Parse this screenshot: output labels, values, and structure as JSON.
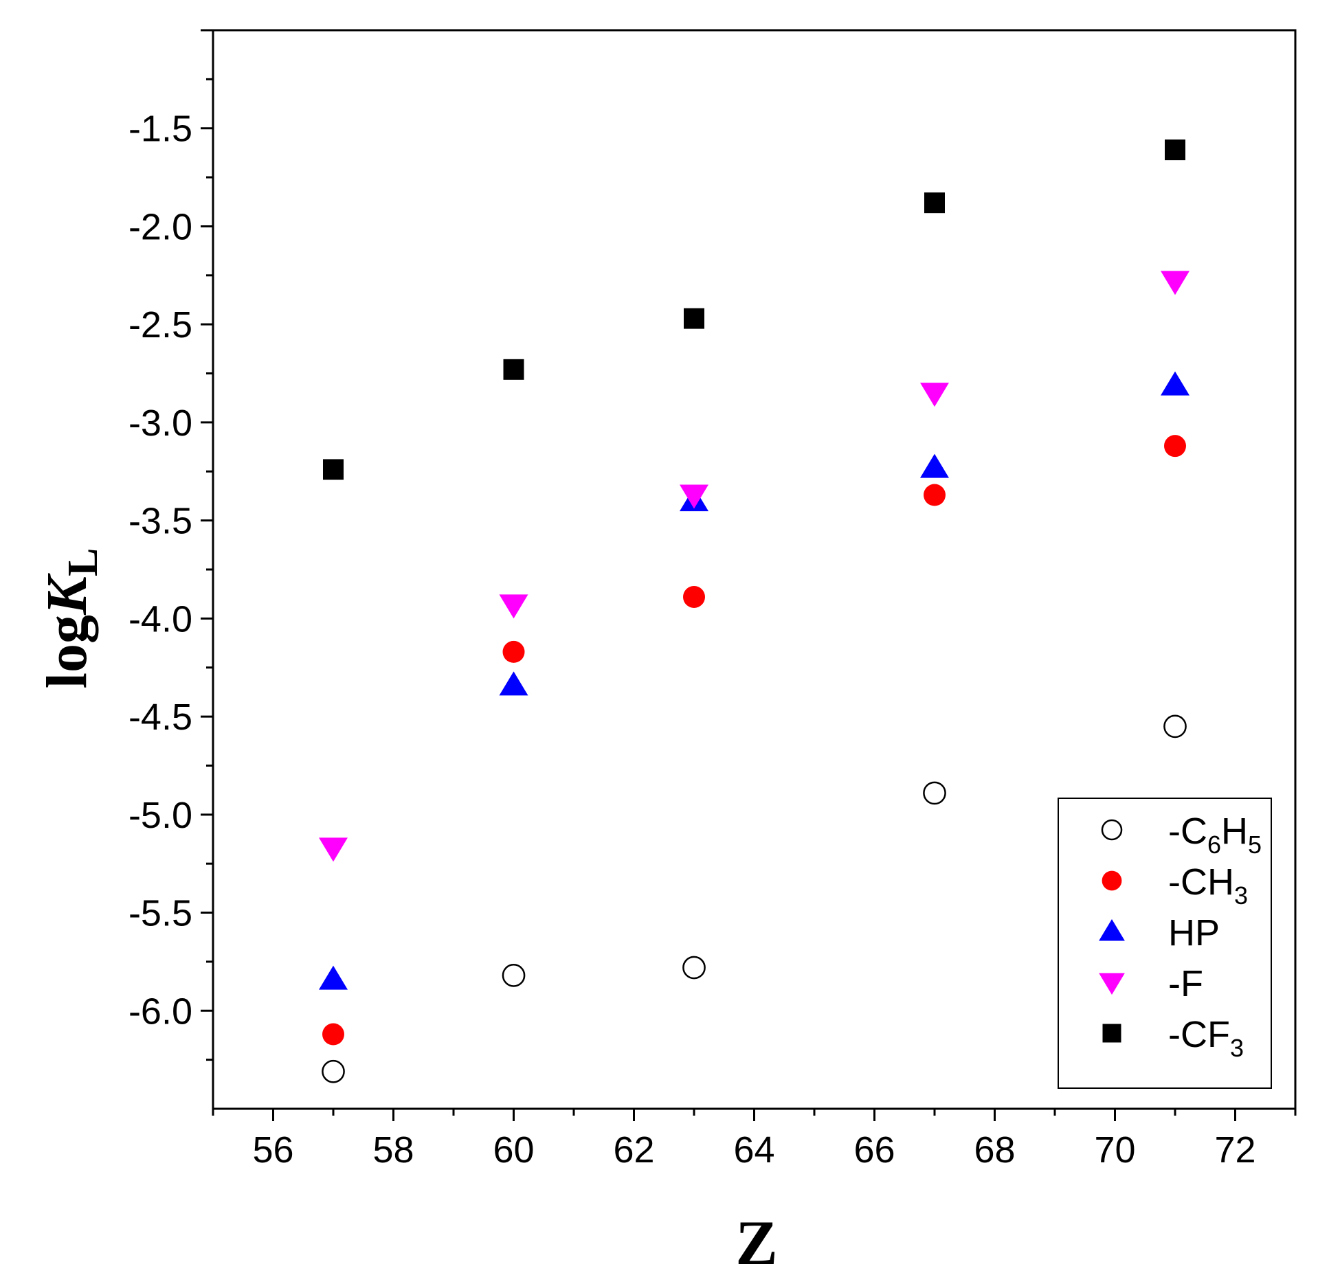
{
  "chart_data": {
    "type": "scatter",
    "title": "",
    "xlabel": "Z",
    "ylabel": {
      "prefix": "log",
      "italic": "K",
      "subscript": "L"
    },
    "xlim": [
      55,
      73
    ],
    "ylim": [
      -6.5,
      -1.0
    ],
    "x_ticks": [
      "56",
      "58",
      "60",
      "62",
      "64",
      "66",
      "68",
      "70",
      "72"
    ],
    "y_ticks": [
      "-1.5",
      "-2.0",
      "-2.5",
      "-3.0",
      "-3.5",
      "-4.0",
      "-4.5",
      "-5.0",
      "-5.5",
      "-6.0"
    ],
    "x": [
      57,
      60,
      63,
      67,
      71
    ],
    "grid": false,
    "legend_position": "bottom-right",
    "series": [
      {
        "name": "-C6H5",
        "label_base": "-C",
        "label_sub1": "6",
        "label_mid": "H",
        "label_sub2": "5",
        "marker": "circle-open",
        "color": "#000000",
        "values": [
          -6.31,
          -5.82,
          -5.78,
          -4.89,
          -4.55
        ]
      },
      {
        "name": "-CH3",
        "label_base": "-CH",
        "label_sub1": "3",
        "label_mid": "",
        "label_sub2": "",
        "marker": "circle",
        "color": "#ff0000",
        "values": [
          -6.12,
          -4.17,
          -3.89,
          -3.37,
          -3.12
        ]
      },
      {
        "name": "HP",
        "label_base": "HP",
        "label_sub1": "",
        "label_mid": "",
        "label_sub2": "",
        "marker": "triangle-up",
        "color": "#0000ff",
        "values": [
          -5.84,
          -4.34,
          -3.4,
          -3.23,
          -2.81
        ]
      },
      {
        "name": "-F",
        "label_base": "-F",
        "label_sub1": "",
        "label_mid": "",
        "label_sub2": "",
        "marker": "triangle-down",
        "color": "#ff00ff",
        "values": [
          -5.17,
          -3.93,
          -3.37,
          -2.85,
          -2.28
        ]
      },
      {
        "name": "-CF3",
        "label_base": "-CF",
        "label_sub1": "3",
        "label_mid": "",
        "label_sub2": "",
        "marker": "square",
        "color": "#000000",
        "values": [
          -3.24,
          -2.73,
          -2.47,
          -1.88,
          -1.61
        ]
      }
    ]
  }
}
